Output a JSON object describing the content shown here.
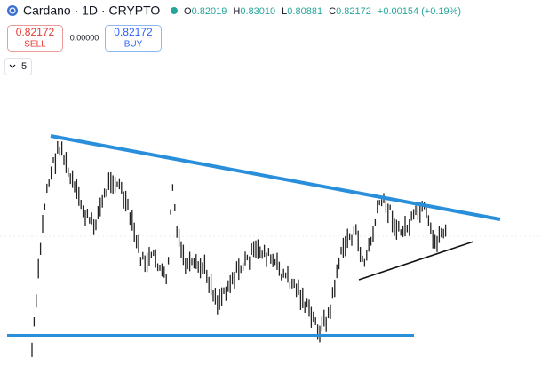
{
  "header": {
    "symbol": "Cardano · 1D · CRYPTO",
    "ohlc": [
      {
        "label": "O",
        "value": "0.82019"
      },
      {
        "label": "H",
        "value": "0.83010"
      },
      {
        "label": "L",
        "value": "0.80881"
      },
      {
        "label": "C",
        "value": "0.82172"
      }
    ],
    "change": "+0.00154 (+0.19%)"
  },
  "trade": {
    "sell_price": "0.82172",
    "sell_label": "SELL",
    "spread": "0.00000",
    "buy_price": "0.82172",
    "buy_label": "BUY"
  },
  "indicators": {
    "count": "5"
  }
}
